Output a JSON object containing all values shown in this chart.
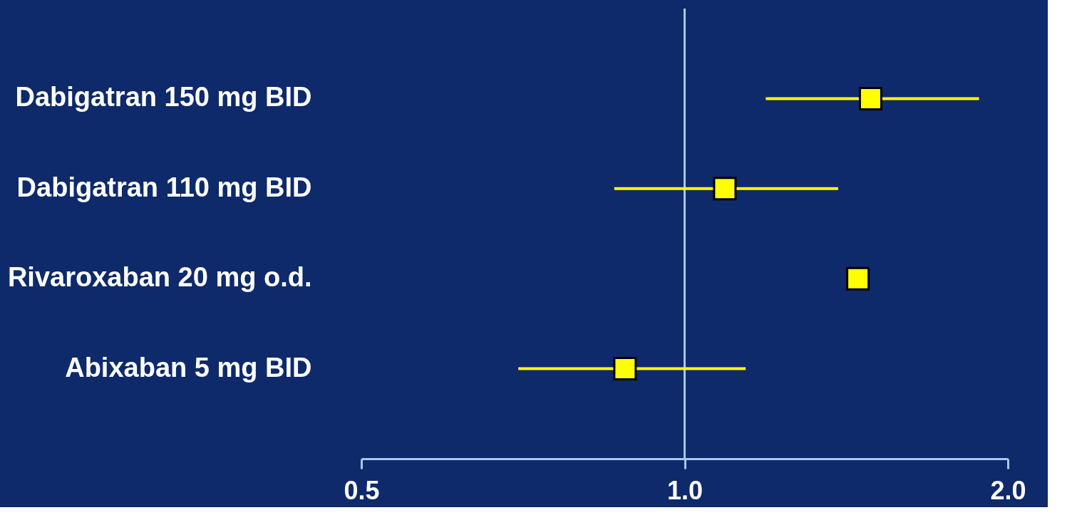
{
  "chart_data": {
    "type": "scatter",
    "orientation": "horizontal",
    "log": "x",
    "marker": "square",
    "categories": [
      "Dabigatran 150 mg BID",
      "Dabigatran 110 mg BID",
      "Rivaroxaban 20 mg o.d.",
      "Abixaban 5 mg BID"
    ],
    "series": [
      {
        "color": "#ffff00",
        "values": [
          1.49,
          1.09,
          1.45,
          0.88
        ],
        "errors": [
          [
            1.19,
            1.88
          ],
          [
            0.86,
            1.39
          ],
          null,
          [
            0.7,
            1.14
          ]
        ]
      }
    ],
    "xlim": [
      0.5,
      2.0
    ],
    "xticks": [
      {
        "value": 0.5,
        "label": "0.5"
      },
      {
        "value": 1.0,
        "label": "1.0"
      },
      {
        "value": 2.0,
        "label": "2.0"
      }
    ],
    "ref_lines": [
      {
        "axis": "x",
        "value": 1.0,
        "color": "#a9c8ec"
      }
    ],
    "grid": false,
    "legend": false
  }
}
